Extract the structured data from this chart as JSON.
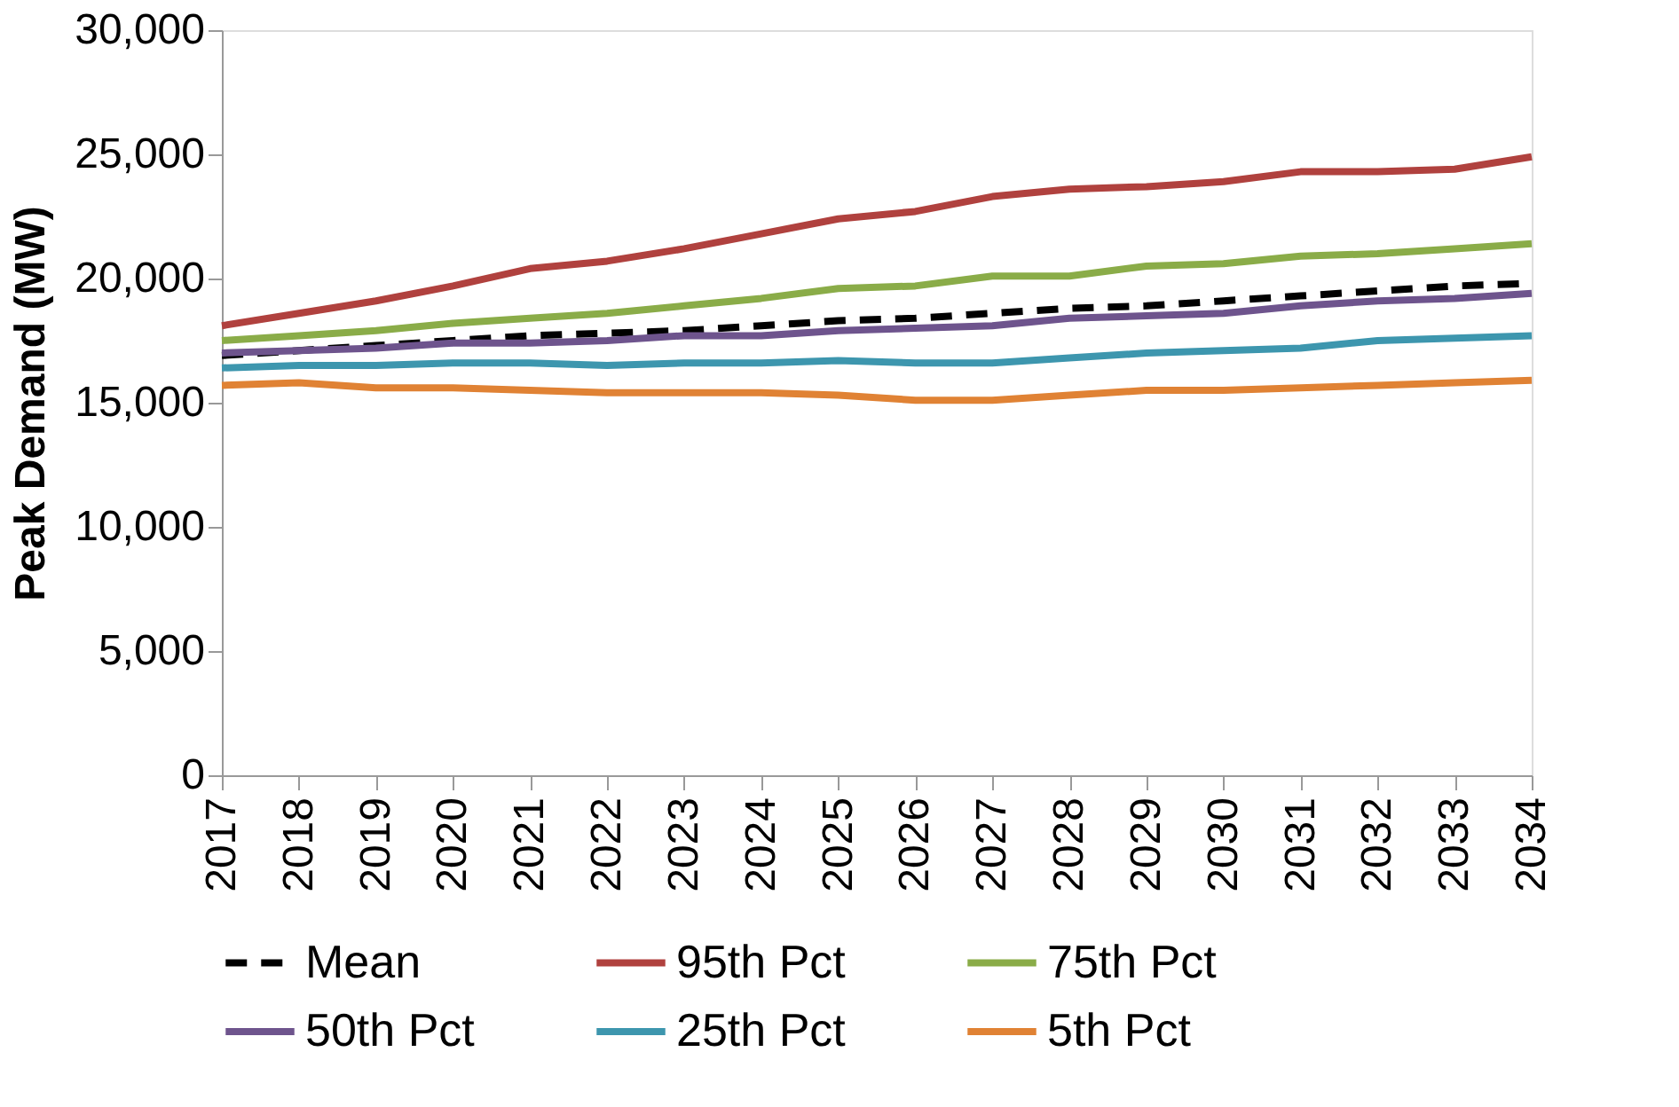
{
  "chart_data": {
    "type": "line",
    "ylabel": "Peak Demand (MW)",
    "categories": [
      "2017",
      "2018",
      "2019",
      "2020",
      "2021",
      "2022",
      "2023",
      "2024",
      "2025",
      "2026",
      "2027",
      "2028",
      "2029",
      "2030",
      "2031",
      "2032",
      "2033",
      "2034"
    ],
    "ylim": [
      0,
      30000
    ],
    "yticks": [
      0,
      {
        "value": 5000,
        "label": "5,000"
      },
      {
        "value": 10000,
        "label": "10,000"
      },
      {
        "value": 15000,
        "label": "15,000"
      },
      {
        "value": 20000,
        "label": "20,000"
      },
      {
        "value": 25000,
        "label": "25,000"
      },
      {
        "value": 30000,
        "label": "30,000"
      }
    ],
    "grid": false,
    "legend": "bottom",
    "marker": "none",
    "series": [
      {
        "name": "Mean",
        "color": "#000000",
        "line_style": "dashed",
        "values": [
          16900,
          17100,
          17300,
          17500,
          17700,
          17800,
          17900,
          18100,
          18300,
          18400,
          18600,
          18800,
          18900,
          19100,
          19300,
          19500,
          19700,
          19800
        ]
      },
      {
        "name": "95th Pct",
        "color": "#b0413e",
        "line_style": "solid",
        "values": [
          18100,
          18600,
          19100,
          19700,
          20400,
          20700,
          21200,
          21800,
          22400,
          22700,
          23300,
          23600,
          23700,
          23900,
          24300,
          24300,
          24400,
          24900
        ]
      },
      {
        "name": "75th Pct",
        "color": "#8aac48",
        "line_style": "solid",
        "values": [
          17500,
          17700,
          17900,
          18200,
          18400,
          18600,
          18900,
          19200,
          19600,
          19700,
          20100,
          20100,
          20500,
          20600,
          20900,
          21000,
          21200,
          21400
        ]
      },
      {
        "name": "50th Pct",
        "color": "#6e548d",
        "line_style": "solid",
        "values": [
          17000,
          17100,
          17200,
          17400,
          17400,
          17500,
          17700,
          17700,
          17900,
          18000,
          18100,
          18400,
          18500,
          18600,
          18900,
          19100,
          19200,
          19400
        ]
      },
      {
        "name": "25th Pct",
        "color": "#3d96ae",
        "line_style": "solid",
        "values": [
          16400,
          16500,
          16500,
          16600,
          16600,
          16500,
          16600,
          16600,
          16700,
          16600,
          16600,
          16800,
          17000,
          17100,
          17200,
          17500,
          17600,
          17700
        ]
      },
      {
        "name": "5th Pct",
        "color": "#e08234",
        "line_style": "solid",
        "values": [
          15700,
          15800,
          15600,
          15600,
          15500,
          15400,
          15400,
          15400,
          15300,
          15100,
          15100,
          15300,
          15500,
          15500,
          15600,
          15700,
          15800,
          15900
        ]
      }
    ]
  }
}
